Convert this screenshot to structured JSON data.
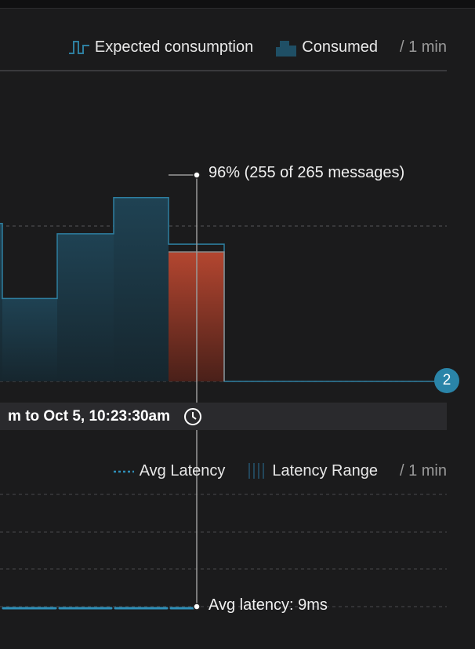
{
  "consumption_legend": {
    "expected_label": "Expected consumption",
    "consumed_label": "Consumed",
    "interval_label": "/ 1 min"
  },
  "latency_legend": {
    "avg_label": "Avg Latency",
    "range_label": "Latency Range",
    "interval_label": "/ 1 min"
  },
  "time_range_label": "m to Oct 5, 10:23:30am",
  "tooltip": {
    "consumption_text": "96% (255 of 265 messages)",
    "latency_text": "Avg latency: 9ms"
  },
  "badge_count": "2",
  "colors": {
    "consumed_fill": "#1f3f4f",
    "expected_line": "#2e7fa0",
    "highlight_bar": "#a8402c",
    "latency_line": "#2e8fb8",
    "badge": "#2a84a8"
  },
  "icons": {
    "expected_legend": "step-line-icon",
    "consumed_legend": "step-area-icon",
    "avg_latency_legend": "dotted-line-icon",
    "latency_range_legend": "vertical-bars-icon",
    "time": "clock-icon"
  },
  "chart_data": [
    {
      "type": "area",
      "step": true,
      "series": [
        {
          "name": "Consumed",
          "values": [
            305,
            160,
            285,
            355,
            250,
            0
          ]
        },
        {
          "name": "Expected consumption",
          "values": [
            305,
            160,
            285,
            355,
            265,
            0
          ]
        }
      ],
      "ylim": [
        0,
        600
      ],
      "highlight_index": 4,
      "grid": true
    },
    {
      "type": "line",
      "series": [
        {
          "name": "Avg Latency",
          "values": [
            9,
            9,
            9,
            9
          ]
        }
      ],
      "ylim": [
        0,
        50
      ],
      "grid": true
    }
  ]
}
